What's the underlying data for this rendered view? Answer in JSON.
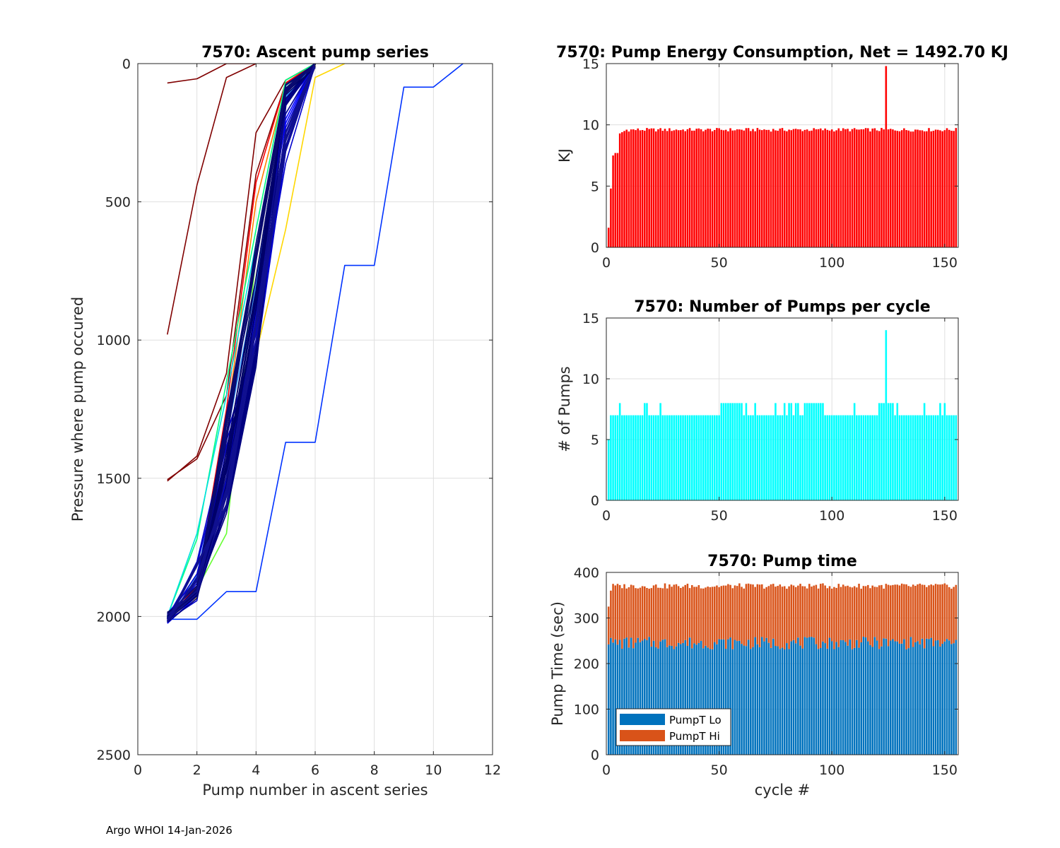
{
  "footer": "Argo WHOI 14-Jan-2026",
  "colors": {
    "red": "#ff0000",
    "cyan": "#00ffff",
    "lo": "#0072bd",
    "hi": "#d95319"
  },
  "chart_data": [
    {
      "id": "ascent",
      "type": "line",
      "title": "7570: Ascent pump series",
      "xlabel": "Pump number in ascent series",
      "ylabel": "Pressure where pump occured",
      "xlim": [
        0,
        12
      ],
      "ylim": [
        0,
        2500
      ],
      "y_reversed": true,
      "xticks": [
        0,
        2,
        4,
        6,
        8,
        10,
        12
      ],
      "yticks": [
        0,
        500,
        1000,
        1500,
        2000,
        2500
      ],
      "grid": true,
      "series": [
        {
          "name": "dark-red 1",
          "color": "#800000",
          "x": [
            1,
            2,
            3,
            4
          ],
          "y": [
            70,
            55,
            0,
            0
          ]
        },
        {
          "name": "dark-red 2",
          "color": "#800000",
          "x": [
            1,
            2,
            3,
            4
          ],
          "y": [
            980,
            440,
            50,
            0
          ]
        },
        {
          "name": "dark-red 3",
          "color": "#800000",
          "x": [
            1,
            2,
            3,
            4,
            5,
            6
          ],
          "y": [
            1510,
            1420,
            1120,
            250,
            60,
            0
          ]
        },
        {
          "name": "dark-red 4",
          "color": "#800000",
          "x": [
            1,
            2,
            3,
            4,
            5,
            6
          ],
          "y": [
            1505,
            1430,
            1200,
            400,
            70,
            0
          ]
        },
        {
          "name": "red",
          "color": "#ff0000",
          "x": [
            1,
            2,
            3,
            4,
            5,
            6
          ],
          "y": [
            2010,
            1890,
            1250,
            430,
            70,
            0
          ]
        },
        {
          "name": "orange",
          "color": "#ff8000",
          "x": [
            1,
            2,
            3,
            4,
            5,
            6
          ],
          "y": [
            2000,
            1920,
            1300,
            500,
            80,
            0
          ]
        },
        {
          "name": "yellow",
          "color": "#ffd700",
          "x": [
            1,
            2,
            3,
            4,
            5,
            6,
            7
          ],
          "y": [
            2010,
            1930,
            1400,
            1050,
            600,
            50,
            0
          ]
        },
        {
          "name": "green",
          "color": "#66ff33",
          "x": [
            1,
            2,
            3,
            4,
            5,
            6
          ],
          "y": [
            2010,
            1900,
            1700,
            700,
            80,
            0
          ]
        },
        {
          "name": "spring-green",
          "color": "#00ff80",
          "x": [
            1,
            2,
            3,
            4,
            5,
            6
          ],
          "y": [
            2000,
            1720,
            1150,
            600,
            60,
            0
          ]
        },
        {
          "name": "cyan",
          "color": "#00e0e0",
          "x": [
            1,
            2,
            3,
            4,
            5,
            6
          ],
          "y": [
            2000,
            1700,
            1200,
            650,
            80,
            0
          ]
        },
        {
          "name": "light-blue",
          "color": "#3399ff",
          "x": [
            1,
            2,
            3,
            4,
            5,
            6
          ],
          "y": [
            2005,
            1850,
            1350,
            800,
            120,
            0
          ]
        },
        {
          "name": "blue outlier",
          "color": "#0033ff",
          "x": [
            1,
            2,
            3,
            4,
            5,
            6,
            7,
            8,
            9,
            10,
            11
          ],
          "y": [
            2010,
            2010,
            1910,
            1910,
            1370,
            1370,
            730,
            730,
            85,
            85,
            0
          ]
        },
        {
          "name": "blue 1",
          "color": "#0000ff",
          "x": [
            1,
            2,
            3,
            4,
            5,
            6
          ],
          "y": [
            2010,
            1910,
            1500,
            900,
            200,
            0
          ]
        },
        {
          "name": "blue 2",
          "color": "#0000cc",
          "x": [
            1,
            2,
            3,
            4,
            5,
            6
          ],
          "y": [
            2005,
            1880,
            1400,
            1000,
            300,
            0
          ]
        },
        {
          "name": "navy 1",
          "color": "#000080",
          "x": [
            1,
            2,
            3,
            4,
            5,
            6
          ],
          "y": [
            2010,
            1920,
            1600,
            1050,
            150,
            0
          ]
        },
        {
          "name": "navy 2",
          "color": "#00006a",
          "x": [
            1,
            2,
            3,
            4,
            5,
            6
          ],
          "y": [
            2000,
            1910,
            1450,
            850,
            100,
            0
          ]
        },
        {
          "name": "navy 3",
          "color": "#0a0a70",
          "x": [
            1,
            2,
            3,
            4,
            5,
            6
          ],
          "y": [
            2005,
            1900,
            1300,
            700,
            90,
            0
          ]
        },
        {
          "name": "navy 4",
          "color": "#101090",
          "x": [
            1,
            2,
            3,
            4,
            5,
            6
          ],
          "y": [
            2010,
            1870,
            1550,
            950,
            250,
            0
          ]
        }
      ]
    },
    {
      "id": "energy",
      "type": "bar",
      "title": "7570: Pump Energy Consumption,  Net = 1492.70 KJ",
      "xlabel": "",
      "ylabel": "KJ",
      "xlim": [
        0,
        156
      ],
      "ylim": [
        0,
        15
      ],
      "xticks": [
        0,
        50,
        100,
        150
      ],
      "yticks": [
        0,
        5,
        10,
        15
      ],
      "grid": true,
      "color": "#ff0000",
      "special": {
        "1": 1.6,
        "2": 4.8,
        "3": 7.5,
        "4": 7.7,
        "5": 7.7,
        "6": 9.3,
        "7": 9.4,
        "8": 9.5,
        "124": 14.8
      },
      "base": 9.6,
      "jitter": 0.15
    },
    {
      "id": "pumps",
      "type": "bar",
      "title": "7570: Number of Pumps per cycle",
      "xlabel": "",
      "ylabel": "# of Pumps",
      "xlim": [
        0,
        156
      ],
      "ylim": [
        0,
        15
      ],
      "xticks": [
        0,
        50,
        100,
        150
      ],
      "yticks": [
        0,
        5,
        10,
        15
      ],
      "grid": true,
      "color": "#00ffff",
      "base": 7,
      "special": {
        "1": 5,
        "124": 14
      },
      "eights": [
        6,
        17,
        18,
        24,
        51,
        52,
        53,
        54,
        55,
        56,
        57,
        58,
        59,
        60,
        62,
        66,
        75,
        79,
        81,
        82,
        84,
        85,
        88,
        89,
        90,
        91,
        92,
        93,
        94,
        95,
        96,
        110,
        121,
        122,
        123,
        125,
        126,
        127,
        129,
        141,
        148,
        150
      ]
    },
    {
      "id": "pumptime",
      "type": "bar",
      "stacked": true,
      "title": "7570: Pump time",
      "xlabel": "cycle #",
      "ylabel": "Pump Time (sec)",
      "xlim": [
        0,
        156
      ],
      "ylim": [
        0,
        400
      ],
      "xticks": [
        0,
        50,
        100,
        150
      ],
      "yticks": [
        0,
        100,
        200,
        300,
        400
      ],
      "grid": true,
      "legend": [
        "PumpT Lo",
        "PumpT Hi"
      ],
      "legend_position": "bottom-left",
      "special_total": {
        "1": 325,
        "2": 360
      },
      "lo_base": 245,
      "total_base": 370
    }
  ]
}
